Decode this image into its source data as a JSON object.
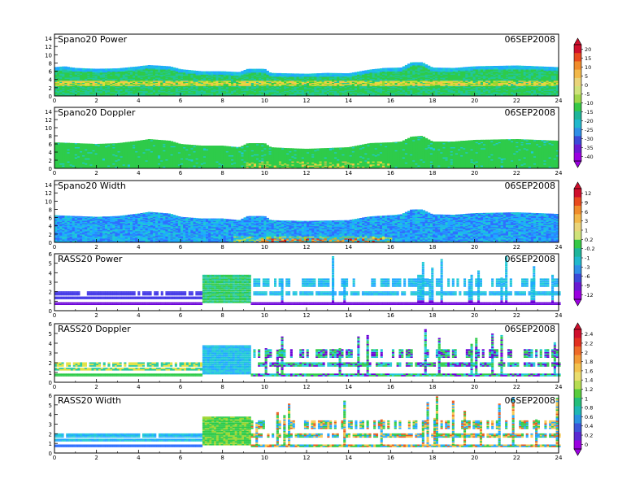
{
  "chart_data": [
    {
      "type": "heatmap",
      "title": "Spano20 Power",
      "date": "06SEP2008",
      "x_ticks": [
        "0",
        "2",
        "4",
        "6",
        "8",
        "10",
        "12",
        "14",
        "16",
        "18",
        "20",
        "22",
        "24"
      ],
      "y_ticks": [
        "0",
        "2",
        "4",
        "6",
        "8",
        "10",
        "12",
        "14"
      ],
      "xlim": [
        0,
        24
      ],
      "ylim": [
        0,
        15
      ],
      "colorbar_ticks": [
        "20",
        "15",
        "10",
        "5",
        "0",
        "-5",
        "-10",
        "-15",
        "-20",
        "-25",
        "-30",
        "-35",
        "-40"
      ],
      "top_height": [
        [
          0,
          7.0
        ],
        [
          0.5,
          7.2
        ],
        [
          1,
          6.8
        ],
        [
          2,
          6.6
        ],
        [
          3,
          6.7
        ],
        [
          4,
          7.2
        ],
        [
          4.5,
          7.5
        ],
        [
          5.5,
          7.2
        ],
        [
          6,
          6.5
        ],
        [
          7,
          6.0
        ],
        [
          8,
          6.0
        ],
        [
          8.8,
          5.8
        ],
        [
          9.2,
          6.6
        ],
        [
          10,
          6.6
        ],
        [
          10.3,
          5.6
        ],
        [
          11,
          5.5
        ],
        [
          12,
          5.4
        ],
        [
          13,
          5.6
        ],
        [
          14,
          5.5
        ],
        [
          15,
          6.4
        ],
        [
          15.7,
          6.8
        ],
        [
          16.5,
          6.9
        ],
        [
          17,
          8.2
        ],
        [
          17.5,
          8.2
        ],
        [
          18,
          6.9
        ],
        [
          19,
          6.8
        ],
        [
          20,
          7.2
        ],
        [
          21,
          7.3
        ],
        [
          22,
          7.4
        ],
        [
          23,
          7.2
        ],
        [
          24,
          7.0
        ]
      ],
      "colorbar": "A"
    },
    {
      "type": "heatmap",
      "title": "Spano20 Doppler",
      "date": "06SEP2008",
      "x_ticks": [
        "0",
        "2",
        "4",
        "6",
        "8",
        "10",
        "12",
        "14",
        "16",
        "18",
        "20",
        "22",
        "24"
      ],
      "y_ticks": [
        "0",
        "2",
        "4",
        "6",
        "8",
        "10",
        "12",
        "14"
      ],
      "xlim": [
        0,
        24
      ],
      "ylim": [
        0,
        15
      ],
      "top_height": [
        [
          0,
          6.4
        ],
        [
          1,
          6.2
        ],
        [
          2,
          6.0
        ],
        [
          3,
          6.2
        ],
        [
          4,
          6.8
        ],
        [
          4.5,
          7.2
        ],
        [
          5.5,
          6.8
        ],
        [
          6,
          6.0
        ],
        [
          7,
          5.6
        ],
        [
          8,
          5.6
        ],
        [
          8.8,
          5.2
        ],
        [
          9.2,
          6.2
        ],
        [
          10,
          6.2
        ],
        [
          10.3,
          5.2
        ],
        [
          11,
          5.0
        ],
        [
          12,
          4.8
        ],
        [
          13,
          5.0
        ],
        [
          14,
          5.2
        ],
        [
          15,
          6.2
        ],
        [
          16,
          6.4
        ],
        [
          16.5,
          6.6
        ],
        [
          17,
          7.8
        ],
        [
          17.5,
          8.0
        ],
        [
          18,
          6.6
        ],
        [
          19,
          6.6
        ],
        [
          20,
          7.0
        ],
        [
          21,
          7.1
        ],
        [
          22,
          7.2
        ],
        [
          23,
          7.0
        ],
        [
          24,
          6.8
        ]
      ],
      "colorbar": "A"
    },
    {
      "type": "heatmap",
      "title": "Spano20 Width",
      "date": "06SEP2008",
      "x_ticks": [
        "0",
        "2",
        "4",
        "6",
        "8",
        "10",
        "12",
        "14",
        "16",
        "18",
        "20",
        "22",
        "24"
      ],
      "y_ticks": [
        "0",
        "2",
        "4",
        "6",
        "8",
        "10",
        "12",
        "14"
      ],
      "xlim": [
        0,
        24
      ],
      "ylim": [
        0,
        15
      ],
      "colorbar_ticks": [
        "12",
        "9",
        "6",
        "3",
        "1",
        "0.2",
        "-0.2",
        "-1",
        "-3",
        "-6",
        "-9",
        "-12"
      ],
      "top_height": [
        [
          0,
          6.6
        ],
        [
          1,
          6.4
        ],
        [
          2,
          6.2
        ],
        [
          3,
          6.4
        ],
        [
          4,
          7.0
        ],
        [
          4.5,
          7.4
        ],
        [
          5.5,
          7.0
        ],
        [
          6,
          6.2
        ],
        [
          7,
          5.8
        ],
        [
          8,
          5.8
        ],
        [
          8.8,
          5.4
        ],
        [
          9.2,
          6.4
        ],
        [
          10,
          6.4
        ],
        [
          10.3,
          5.4
        ],
        [
          11,
          5.3
        ],
        [
          12,
          5.2
        ],
        [
          13,
          5.3
        ],
        [
          14,
          5.4
        ],
        [
          15,
          6.3
        ],
        [
          16,
          6.6
        ],
        [
          16.5,
          6.8
        ],
        [
          17,
          8.0
        ],
        [
          17.5,
          8.0
        ],
        [
          18,
          6.8
        ],
        [
          19,
          6.7
        ],
        [
          20,
          7.1
        ],
        [
          21,
          7.2
        ],
        [
          22,
          7.3
        ],
        [
          23,
          7.1
        ],
        [
          24,
          6.9
        ]
      ],
      "colorbar": "B"
    },
    {
      "type": "heatmap",
      "title": "RASS20 Power",
      "date": "06SEP2008",
      "x_ticks": [
        "0",
        "2",
        "4",
        "6",
        "8",
        "10",
        "12",
        "14",
        "16",
        "18",
        "20",
        "22",
        "24"
      ],
      "y_ticks": [
        "0",
        "1",
        "2",
        "3",
        "4",
        "5",
        "6"
      ],
      "xlim": [
        0,
        24
      ],
      "ylim": [
        0,
        6
      ],
      "colorbar": "B"
    },
    {
      "type": "heatmap",
      "title": "RASS20 Doppler",
      "date": "06SEP2008",
      "x_ticks": [
        "0",
        "2",
        "4",
        "6",
        "8",
        "10",
        "12",
        "14",
        "16",
        "18",
        "20",
        "22",
        "24"
      ],
      "y_ticks": [
        "0",
        "1",
        "2",
        "3",
        "4",
        "5",
        "6"
      ],
      "xlim": [
        0,
        24
      ],
      "ylim": [
        0,
        6
      ],
      "colorbar_ticks": [
        "2.4",
        "2.2",
        "2",
        "1.8",
        "1.6",
        "1.4",
        "1.2",
        "1",
        "0.8",
        "0.6",
        "0.4",
        "0.2",
        "0"
      ],
      "colorbar": "C"
    },
    {
      "type": "heatmap",
      "title": "RASS20 Width",
      "date": "06SEP2008",
      "x_ticks": [
        "0",
        "2",
        "4",
        "6",
        "8",
        "10",
        "12",
        "14",
        "16",
        "18",
        "20",
        "22",
        "24"
      ],
      "y_ticks": [
        "0",
        "1",
        "2",
        "3",
        "4",
        "5",
        "6"
      ],
      "xlim": [
        0,
        24
      ],
      "ylim": [
        0,
        6
      ],
      "colorbar": "C"
    }
  ],
  "palette": [
    "#6a00d8",
    "#3a2fe6",
    "#2f6fff",
    "#1fa8ff",
    "#1ec9d6",
    "#22c79a",
    "#2ecb4a",
    "#9ad62e",
    "#dfe03a",
    "#f5c54a",
    "#f39a2a",
    "#e85a1c",
    "#d81a1a"
  ],
  "colorbar_A_colors": [
    "#cf0f2c",
    "#e84a1e",
    "#f08c2c",
    "#f2b84a",
    "#e9d47a",
    "#cfe27a",
    "#9fd64a",
    "#36c846",
    "#1fb59a",
    "#21b8cc",
    "#2f8fe6",
    "#3b4ad8",
    "#6a1ad2",
    "#9b00e0"
  ],
  "colorbar_B_colors": [
    "#cf0f2c",
    "#e84a1e",
    "#f08c2c",
    "#f2b84a",
    "#e9d47a",
    "#cfe27a",
    "#36c846",
    "#1fb59a",
    "#21b8cc",
    "#2f8fe6",
    "#3b4ad8",
    "#6a1ad2",
    "#9b00e0"
  ],
  "colorbar_C_colors": [
    "#cf0f2c",
    "#e23020",
    "#ee6a28",
    "#f29a36",
    "#f2c24e",
    "#e9dd6e",
    "#b6dc52",
    "#58cc3c",
    "#24be7a",
    "#1fb7b4",
    "#2a92e0",
    "#3b56d8",
    "#5a2ad2",
    "#9b00e0"
  ]
}
